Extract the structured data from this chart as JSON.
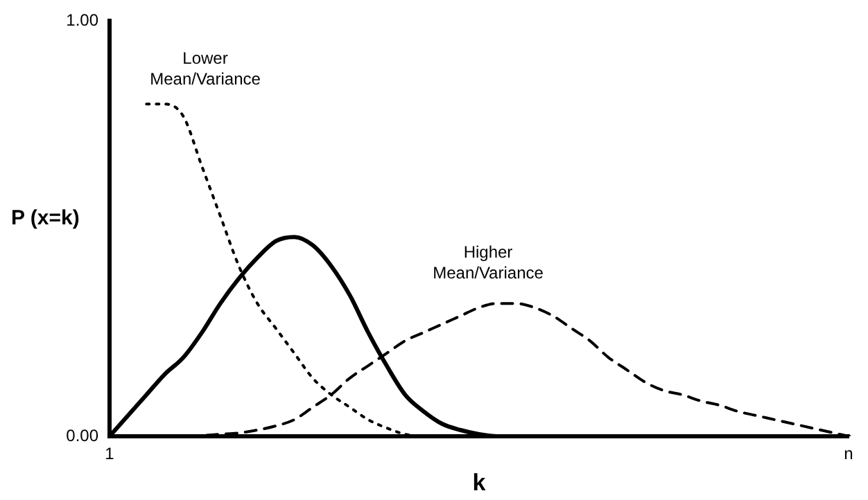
{
  "chart_data": {
    "type": "line",
    "xlabel": "k",
    "ylabel": "P (x=k)",
    "categories": [
      "1",
      null,
      null,
      null,
      null,
      null,
      null,
      null,
      null,
      null,
      null,
      null,
      null,
      null,
      null,
      null,
      null,
      null,
      null,
      null,
      null,
      null,
      null,
      null,
      null,
      null,
      null,
      null,
      null,
      null,
      null,
      null,
      null,
      null,
      null,
      null,
      null,
      null,
      null,
      null,
      "n"
    ],
    "ylim": [
      0,
      1
    ],
    "yticks": [
      {
        "value": 0,
        "label": "0.00"
      },
      {
        "value": 1,
        "label": "1.00"
      }
    ],
    "grid": false,
    "legend": false,
    "marker": "none",
    "series": [
      {
        "color": "#000000",
        "line_style": "dotted",
        "values": [
          null,
          null,
          0.8,
          0.8,
          0.77,
          0.65,
          0.53,
          0.41,
          0.32,
          0.26,
          0.2,
          0.14,
          0.1,
          0.07,
          0.04,
          0.02,
          0.005,
          0,
          0,
          null,
          null,
          null,
          null,
          null,
          null,
          null,
          null,
          null,
          null,
          null,
          null,
          null,
          null,
          null,
          null,
          null,
          null,
          null,
          null,
          null,
          null
        ]
      },
      {
        "color": "#000000",
        "line_style": "solid",
        "values": [
          0,
          0.05,
          0.1,
          0.15,
          0.19,
          0.25,
          0.32,
          0.38,
          0.43,
          0.47,
          0.48,
          0.46,
          0.41,
          0.34,
          0.25,
          0.17,
          0.1,
          0.06,
          0.03,
          0.015,
          0.005,
          0,
          0,
          0,
          0,
          0,
          0,
          0,
          0,
          0,
          0,
          0,
          0,
          0,
          0,
          0,
          0,
          0,
          0,
          0,
          0
        ]
      },
      {
        "color": "#000000",
        "line_style": "dashed",
        "values": [
          0,
          0,
          0,
          0,
          0,
          0.002,
          0.005,
          0.008,
          0.015,
          0.025,
          0.04,
          0.07,
          0.1,
          0.14,
          0.17,
          0.2,
          0.23,
          0.25,
          0.27,
          0.29,
          0.31,
          0.32,
          0.32,
          0.31,
          0.29,
          0.26,
          0.23,
          0.19,
          0.16,
          0.13,
          0.11,
          0.1,
          0.085,
          0.075,
          0.06,
          0.05,
          0.04,
          0.03,
          0.02,
          0.01,
          0
        ]
      }
    ],
    "annotations": [
      "Lower\nMean/Variance",
      "Higher\nMean/Variance"
    ]
  }
}
